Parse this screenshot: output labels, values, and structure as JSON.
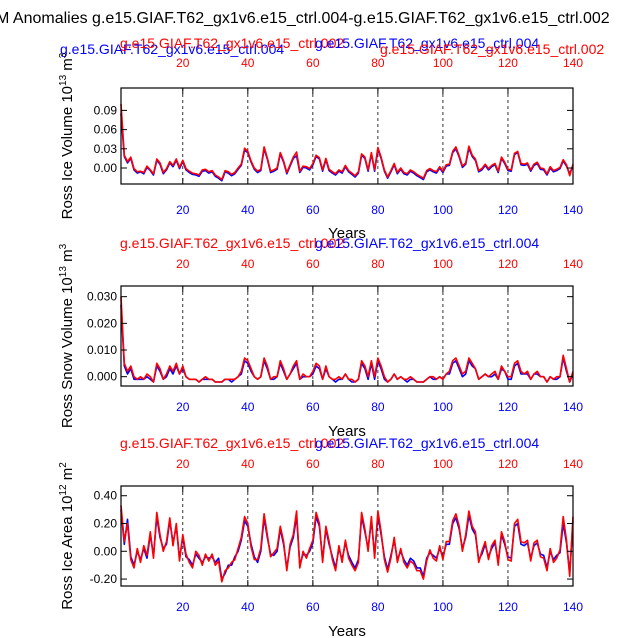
{
  "title": "M Anomalies g.e15.GIAF.T62_gx1v6.e15_ctrl.004-g.e15.GIAF.T62_gx1v6.e15_ctrl.002",
  "colors": {
    "series_a": "#0000ff",
    "series_b": "#ff0000",
    "axis": "#000000",
    "grid": "#000000"
  },
  "chart_data": [
    {
      "type": "line",
      "title": "",
      "top_labels": [
        "g.e15.GIAF.T62_gx1v6.e15_ctrl.004",
        "g.e15.GIAF.T62_gx1v6.e15_ctrl.002",
        "g.e15.GIAF.T62_gx1v6.e15_ctrl.004",
        "g.e15.GIAF.T62_gx1v6.e15_ctrl.002"
      ],
      "ylabel": "Ross Ice Volume 10",
      "ylabel_exp": "13",
      "ylabel_unit": "m",
      "ylabel_unit_exp": "3",
      "xlabel": "Years",
      "xlim": [
        1,
        140
      ],
      "ylim": [
        -0.025,
        0.125
      ],
      "yticks": [
        0.0,
        0.03,
        0.06,
        0.09
      ],
      "ytick_labels": [
        "0.00",
        "0.03",
        "0.06",
        "0.09"
      ],
      "xticks": [
        20,
        40,
        60,
        80,
        100,
        120,
        140
      ],
      "xtick_labels": [
        "20",
        "40",
        "60",
        "80",
        "100",
        "120",
        "140"
      ],
      "vgrid": [
        20,
        40,
        60,
        80,
        100,
        120
      ],
      "series": [
        {
          "name": "g.e15.GIAF.T62_gx1v6.e15_ctrl.004",
          "color": "#0000ff",
          "values": [
            0.085,
            0.018,
            0.008,
            0.015,
            -0.003,
            -0.008,
            -0.006,
            -0.009,
            0.001,
            -0.004,
            -0.011,
            0.012,
            0.006,
            -0.009,
            -0.003,
            0.008,
            0.002,
            0.012,
            -0.001,
            0.01,
            -0.003,
            -0.007,
            -0.01,
            -0.011,
            -0.013,
            -0.005,
            -0.004,
            -0.008,
            -0.006,
            -0.013,
            -0.016,
            -0.02,
            -0.006,
            -0.008,
            -0.012,
            -0.009,
            -0.002,
            0.004,
            0.028,
            0.024,
            0.009,
            -0.002,
            -0.007,
            -0.004,
            0.03,
            0.014,
            -0.007,
            -0.005,
            -0.002,
            0.022,
            0.009,
            -0.009,
            0.003,
            0.015,
            0.019,
            -0.007,
            0.001,
            0.0,
            -0.003,
            0.005,
            0.018,
            0.014,
            -0.005,
            0.013,
            -0.004,
            -0.008,
            -0.011,
            -0.005,
            -0.008,
            0.002,
            -0.006,
            -0.01,
            -0.014,
            -0.008,
            0.02,
            0.015,
            -0.005,
            0.022,
            -0.005,
            0.029,
            0.015,
            -0.005,
            -0.016,
            -0.006,
            0.005,
            -0.009,
            -0.002,
            -0.009,
            -0.011,
            -0.005,
            -0.008,
            -0.012,
            -0.015,
            -0.018,
            -0.006,
            -0.003,
            -0.006,
            -0.008,
            0.0,
            -0.007,
            0.003,
            0.004,
            0.024,
            0.03,
            0.017,
            0.001,
            0.006,
            0.031,
            0.018,
            0.012,
            -0.006,
            -0.003,
            0.004,
            -0.003,
            0.002,
            0.005,
            -0.007,
            0.015,
            0.007,
            -0.004,
            -0.005,
            0.021,
            0.024,
            0.005,
            0.004,
            0.006,
            -0.005,
            0.004,
            0.007,
            -0.002,
            -0.003,
            -0.011,
            0.0,
            -0.006,
            -0.004,
            -0.001,
            0.011,
            0.003,
            -0.009,
            0.004
          ]
        },
        {
          "name": "g.e15.GIAF.T62_gx1v6.e15_ctrl.002",
          "color": "#ff0000",
          "values": [
            0.1,
            0.02,
            0.01,
            0.017,
            -0.001,
            -0.006,
            -0.005,
            -0.007,
            0.003,
            -0.003,
            -0.009,
            0.014,
            0.008,
            -0.007,
            -0.001,
            0.01,
            0.004,
            0.014,
            0.001,
            0.012,
            -0.001,
            -0.005,
            -0.008,
            -0.009,
            -0.011,
            -0.003,
            -0.002,
            -0.006,
            -0.004,
            -0.011,
            -0.014,
            -0.018,
            -0.004,
            -0.006,
            -0.01,
            -0.007,
            0.0,
            0.006,
            0.031,
            0.026,
            0.011,
            0.0,
            -0.005,
            -0.002,
            0.033,
            0.016,
            -0.005,
            -0.003,
            0.0,
            0.024,
            0.011,
            -0.007,
            0.005,
            0.017,
            0.025,
            -0.005,
            0.003,
            0.002,
            -0.001,
            0.007,
            0.02,
            0.016,
            -0.003,
            0.015,
            -0.002,
            -0.006,
            -0.009,
            -0.003,
            -0.006,
            0.004,
            -0.004,
            -0.008,
            -0.012,
            -0.006,
            0.022,
            0.017,
            -0.003,
            0.024,
            -0.003,
            0.032,
            0.017,
            -0.003,
            -0.014,
            -0.004,
            0.007,
            -0.007,
            0.0,
            -0.007,
            -0.009,
            -0.003,
            -0.006,
            -0.01,
            -0.013,
            -0.016,
            -0.004,
            -0.001,
            -0.004,
            -0.006,
            0.002,
            -0.005,
            0.005,
            0.006,
            0.026,
            0.033,
            0.019,
            0.003,
            0.008,
            0.034,
            0.02,
            0.014,
            -0.004,
            -0.001,
            0.006,
            -0.001,
            0.004,
            0.007,
            -0.005,
            0.017,
            0.009,
            -0.002,
            -0.003,
            0.023,
            0.026,
            0.007,
            0.006,
            0.008,
            -0.003,
            0.006,
            0.009,
            0.0,
            -0.001,
            -0.009,
            0.002,
            -0.004,
            -0.002,
            0.001,
            0.013,
            0.005,
            -0.012,
            0.006
          ]
        }
      ]
    },
    {
      "type": "line",
      "title": "",
      "top_labels": [
        "g.e15.GIAF.T62_gx1v6.e15_ctrl.002",
        "g.e15.GIAF.T62_gx1v6.e15_ctrl.004"
      ],
      "ylabel": "Ross Snow Volume 10",
      "ylabel_exp": "13",
      "ylabel_unit": "m",
      "ylabel_unit_exp": "3",
      "xlabel": "Years",
      "xlim": [
        1,
        140
      ],
      "ylim": [
        -0.0035,
        0.034
      ],
      "yticks": [
        0.0,
        0.01,
        0.02,
        0.03
      ],
      "ytick_labels": [
        "0.000",
        "0.010",
        "0.020",
        "0.030"
      ],
      "xticks": [
        20,
        40,
        60,
        80,
        100,
        120,
        140
      ],
      "xtick_labels": [
        "20",
        "40",
        "60",
        "80",
        "100",
        "120",
        "140"
      ],
      "vgrid": [
        20,
        40,
        60,
        80,
        100,
        120
      ],
      "series": [
        {
          "name": "g.e15.GIAF.T62_gx1v6.e15_ctrl.004",
          "color": "#0000ff",
          "values": [
            0.027,
            0.004,
            0.001,
            0.003,
            -0.001,
            -0.001,
            -0.001,
            -0.001,
            0.0,
            -0.001,
            -0.002,
            0.004,
            0.002,
            -0.001,
            0.0,
            0.003,
            0.001,
            0.004,
            0.001,
            0.003,
            0.0,
            -0.001,
            -0.001,
            -0.001,
            -0.002,
            -0.001,
            -0.001,
            -0.001,
            -0.001,
            -0.002,
            -0.002,
            -0.002,
            -0.001,
            -0.001,
            -0.002,
            -0.001,
            0.0,
            0.001,
            0.006,
            0.005,
            0.002,
            0.0,
            -0.001,
            0.0,
            0.006,
            0.003,
            -0.001,
            -0.001,
            0.0,
            0.005,
            0.002,
            -0.001,
            0.001,
            0.003,
            0.005,
            -0.001,
            0.0,
            0.0,
            0.0,
            0.001,
            0.004,
            0.003,
            -0.001,
            0.003,
            0.0,
            -0.001,
            -0.002,
            -0.001,
            -0.001,
            0.001,
            -0.001,
            -0.002,
            -0.002,
            -0.001,
            0.005,
            0.003,
            -0.001,
            0.005,
            -0.001,
            0.006,
            0.003,
            -0.001,
            -0.002,
            -0.001,
            0.001,
            -0.001,
            0.0,
            -0.001,
            -0.002,
            -0.001,
            -0.001,
            -0.002,
            -0.002,
            -0.002,
            -0.001,
            0.0,
            -0.001,
            -0.001,
            0.0,
            -0.001,
            0.001,
            0.001,
            0.005,
            0.006,
            0.003,
            0.0,
            0.001,
            0.006,
            0.004,
            0.003,
            -0.001,
            0.0,
            0.001,
            0.0,
            0.0,
            0.001,
            -0.001,
            0.003,
            0.002,
            -0.001,
            -0.001,
            0.004,
            0.005,
            0.001,
            0.001,
            0.001,
            -0.001,
            0.001,
            0.001,
            0.0,
            0.0,
            -0.002,
            0.0,
            -0.001,
            -0.001,
            0.0,
            0.007,
            0.002,
            -0.002,
            0.001
          ]
        },
        {
          "name": "g.e15.GIAF.T62_gx1v6.e15_ctrl.002",
          "color": "#ff0000",
          "values": [
            0.03,
            0.005,
            0.002,
            0.004,
            0.0,
            -0.001,
            0.0,
            -0.001,
            0.001,
            0.0,
            -0.002,
            0.005,
            0.003,
            -0.001,
            0.001,
            0.004,
            0.002,
            0.005,
            0.001,
            0.004,
            0.0,
            -0.001,
            -0.001,
            -0.001,
            -0.002,
            -0.001,
            0.0,
            -0.001,
            -0.001,
            -0.002,
            -0.002,
            -0.002,
            -0.001,
            -0.001,
            -0.001,
            -0.001,
            0.0,
            0.002,
            0.007,
            0.006,
            0.003,
            0.0,
            -0.001,
            0.0,
            0.007,
            0.004,
            -0.001,
            0.0,
            0.0,
            0.006,
            0.003,
            -0.001,
            0.001,
            0.004,
            0.006,
            -0.001,
            0.001,
            0.0,
            0.0,
            0.002,
            0.005,
            0.004,
            -0.001,
            0.004,
            0.0,
            -0.001,
            -0.001,
            0.0,
            -0.001,
            0.001,
            -0.001,
            -0.001,
            -0.002,
            -0.001,
            0.006,
            0.004,
            0.0,
            0.006,
            0.0,
            0.007,
            0.004,
            0.0,
            -0.002,
            -0.001,
            0.001,
            -0.001,
            0.0,
            -0.001,
            -0.001,
            0.0,
            -0.001,
            -0.002,
            -0.002,
            -0.002,
            -0.001,
            0.0,
            0.0,
            -0.001,
            0.0,
            -0.001,
            0.001,
            0.002,
            0.006,
            0.007,
            0.004,
            0.001,
            0.002,
            0.007,
            0.005,
            0.003,
            -0.001,
            0.0,
            0.001,
            0.0,
            0.001,
            0.002,
            -0.001,
            0.004,
            0.002,
            0.0,
            0.0,
            0.005,
            0.006,
            0.002,
            0.001,
            0.002,
            -0.001,
            0.001,
            0.002,
            0.0,
            0.0,
            -0.002,
            0.0,
            -0.001,
            0.0,
            0.0,
            0.008,
            0.003,
            -0.002,
            0.002
          ]
        }
      ]
    },
    {
      "type": "line",
      "title": "",
      "top_labels": [
        "g.e15.GIAF.T62_gx1v6.e15_ctrl.002",
        "g.e15.GIAF.T62_gx1v6.e15_ctrl.004"
      ],
      "ylabel": "Ross Ice Area 10",
      "ylabel_exp": "12",
      "ylabel_unit": "m",
      "ylabel_unit_exp": "2",
      "xlabel": "Years",
      "xlim": [
        1,
        140
      ],
      "ylim": [
        -0.25,
        0.47
      ],
      "yticks": [
        -0.2,
        0.0,
        0.2,
        0.4
      ],
      "ytick_labels": [
        "-0.20",
        "0.00",
        "0.20",
        "0.40"
      ],
      "xticks": [
        20,
        40,
        60,
        80,
        100,
        120,
        140
      ],
      "xtick_labels": [
        "20",
        "40",
        "60",
        "80",
        "100",
        "120",
        "140"
      ],
      "vgrid": [
        20,
        40,
        60,
        80,
        100,
        120
      ],
      "series": [
        {
          "name": "g.e15.GIAF.T62_gx1v6.e15_ctrl.004",
          "color": "#0000ff",
          "values": [
            0.3,
            0.05,
            0.23,
            -0.04,
            -0.1,
            0.0,
            -0.06,
            0.02,
            -0.05,
            0.12,
            -0.03,
            0.25,
            0.1,
            0.02,
            0.05,
            0.22,
            0.06,
            0.18,
            -0.05,
            0.1,
            -0.04,
            -0.06,
            -0.1,
            -0.02,
            -0.05,
            -0.08,
            -0.04,
            -0.05,
            -0.04,
            -0.08,
            -0.05,
            -0.2,
            -0.16,
            -0.1,
            -0.1,
            -0.04,
            0.0,
            0.08,
            0.22,
            0.18,
            0.05,
            -0.04,
            -0.08,
            0.0,
            0.24,
            0.1,
            -0.02,
            -0.03,
            0.0,
            0.16,
            0.05,
            -0.12,
            0.03,
            0.1,
            0.25,
            -0.1,
            -0.02,
            -0.03,
            0.0,
            0.06,
            0.25,
            0.18,
            -0.06,
            0.16,
            0.05,
            -0.04,
            -0.12,
            0.02,
            -0.06,
            0.06,
            -0.03,
            -0.08,
            -0.12,
            -0.06,
            0.25,
            0.14,
            0.02,
            0.22,
            -0.03,
            0.26,
            0.12,
            -0.04,
            -0.13,
            -0.03,
            0.08,
            -0.06,
            0.0,
            -0.06,
            -0.1,
            -0.05,
            -0.07,
            -0.12,
            -0.12,
            -0.18,
            -0.05,
            -0.01,
            -0.03,
            -0.05,
            0.02,
            -0.04,
            0.05,
            0.05,
            0.2,
            0.24,
            0.16,
            0.02,
            0.1,
            0.26,
            0.16,
            0.12,
            -0.06,
            -0.02,
            0.05,
            -0.04,
            0.02,
            0.06,
            -0.08,
            0.12,
            0.05,
            -0.04,
            -0.05,
            0.18,
            0.2,
            0.05,
            0.04,
            0.06,
            -0.05,
            0.04,
            0.06,
            -0.02,
            -0.03,
            -0.12,
            0.0,
            -0.06,
            -0.03,
            -0.01,
            0.2,
            0.06,
            -0.16,
            0.22
          ]
        },
        {
          "name": "g.e15.GIAF.T62_gx1v6.e15_ctrl.002",
          "color": "#ff0000",
          "values": [
            0.33,
            0.07,
            0.2,
            -0.06,
            -0.12,
            0.02,
            -0.08,
            0.04,
            -0.03,
            0.14,
            -0.05,
            0.28,
            0.12,
            0.0,
            0.07,
            0.24,
            0.04,
            0.2,
            -0.07,
            0.12,
            -0.02,
            -0.08,
            -0.12,
            0.0,
            -0.03,
            -0.1,
            -0.02,
            -0.07,
            -0.02,
            -0.1,
            -0.07,
            -0.22,
            -0.14,
            -0.12,
            -0.08,
            -0.06,
            0.02,
            0.1,
            0.25,
            0.2,
            0.03,
            -0.06,
            -0.06,
            0.02,
            0.27,
            0.12,
            -0.04,
            -0.01,
            0.02,
            0.18,
            0.07,
            -0.14,
            0.05,
            0.12,
            0.29,
            -0.12,
            0.0,
            -0.05,
            0.02,
            0.08,
            0.28,
            0.2,
            -0.08,
            0.18,
            0.07,
            -0.06,
            -0.14,
            0.04,
            -0.08,
            0.08,
            -0.05,
            -0.1,
            -0.14,
            -0.08,
            0.28,
            0.16,
            0.0,
            0.25,
            -0.05,
            0.29,
            0.14,
            -0.06,
            -0.15,
            -0.05,
            0.1,
            -0.08,
            0.02,
            -0.08,
            -0.12,
            -0.07,
            -0.09,
            -0.14,
            -0.14,
            -0.2,
            -0.07,
            0.01,
            -0.05,
            -0.07,
            0.04,
            -0.06,
            0.07,
            0.07,
            0.22,
            0.27,
            0.18,
            0.0,
            0.12,
            0.29,
            0.18,
            0.14,
            -0.08,
            0.0,
            0.07,
            -0.06,
            0.04,
            0.08,
            -0.1,
            0.14,
            0.07,
            -0.06,
            -0.07,
            0.2,
            0.23,
            0.07,
            0.06,
            0.08,
            -0.07,
            0.06,
            0.08,
            -0.04,
            -0.05,
            -0.14,
            0.02,
            -0.08,
            -0.05,
            0.01,
            0.25,
            0.08,
            -0.18,
            0.25
          ]
        }
      ]
    }
  ]
}
